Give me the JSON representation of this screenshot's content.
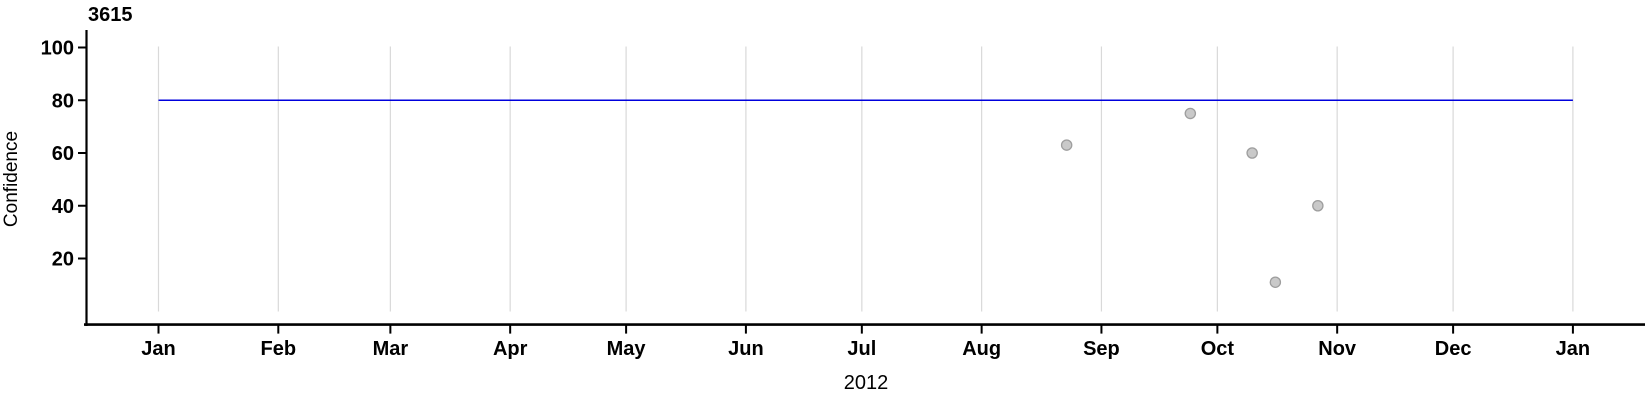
{
  "chart_data": {
    "type": "scatter",
    "title": "3615",
    "xlabel": "2012",
    "ylabel": "Confidence",
    "x_axis": {
      "start": "2012-01-01",
      "end": "2013-01-01",
      "tick_labels": [
        "Jan",
        "Feb",
        "Mar",
        "Apr",
        "May",
        "Jun",
        "Jul",
        "Aug",
        "Sep",
        "Oct",
        "Nov",
        "Dec",
        "Jan"
      ],
      "grid": true
    },
    "y_axis": {
      "tick_values": [
        100,
        80,
        60,
        40,
        20
      ],
      "data_range": [
        0,
        100
      ],
      "grid": false
    },
    "reference_line": {
      "value": 80
    },
    "points": [
      {
        "date": "2012-08-23",
        "confidence": 63
      },
      {
        "date": "2012-09-24",
        "confidence": 75
      },
      {
        "date": "2012-10-10",
        "confidence": 60
      },
      {
        "date": "2012-10-16",
        "confidence": 11
      },
      {
        "date": "2012-10-27",
        "confidence": 40
      }
    ],
    "legend": "none",
    "colors": {
      "reference_line": "#0000dd",
      "point_fill": "#c9c9c9",
      "point_stroke": "#9e9e9e",
      "gridline": "#d9d9d9",
      "axis": "#000000",
      "background": "#ffffff"
    }
  }
}
